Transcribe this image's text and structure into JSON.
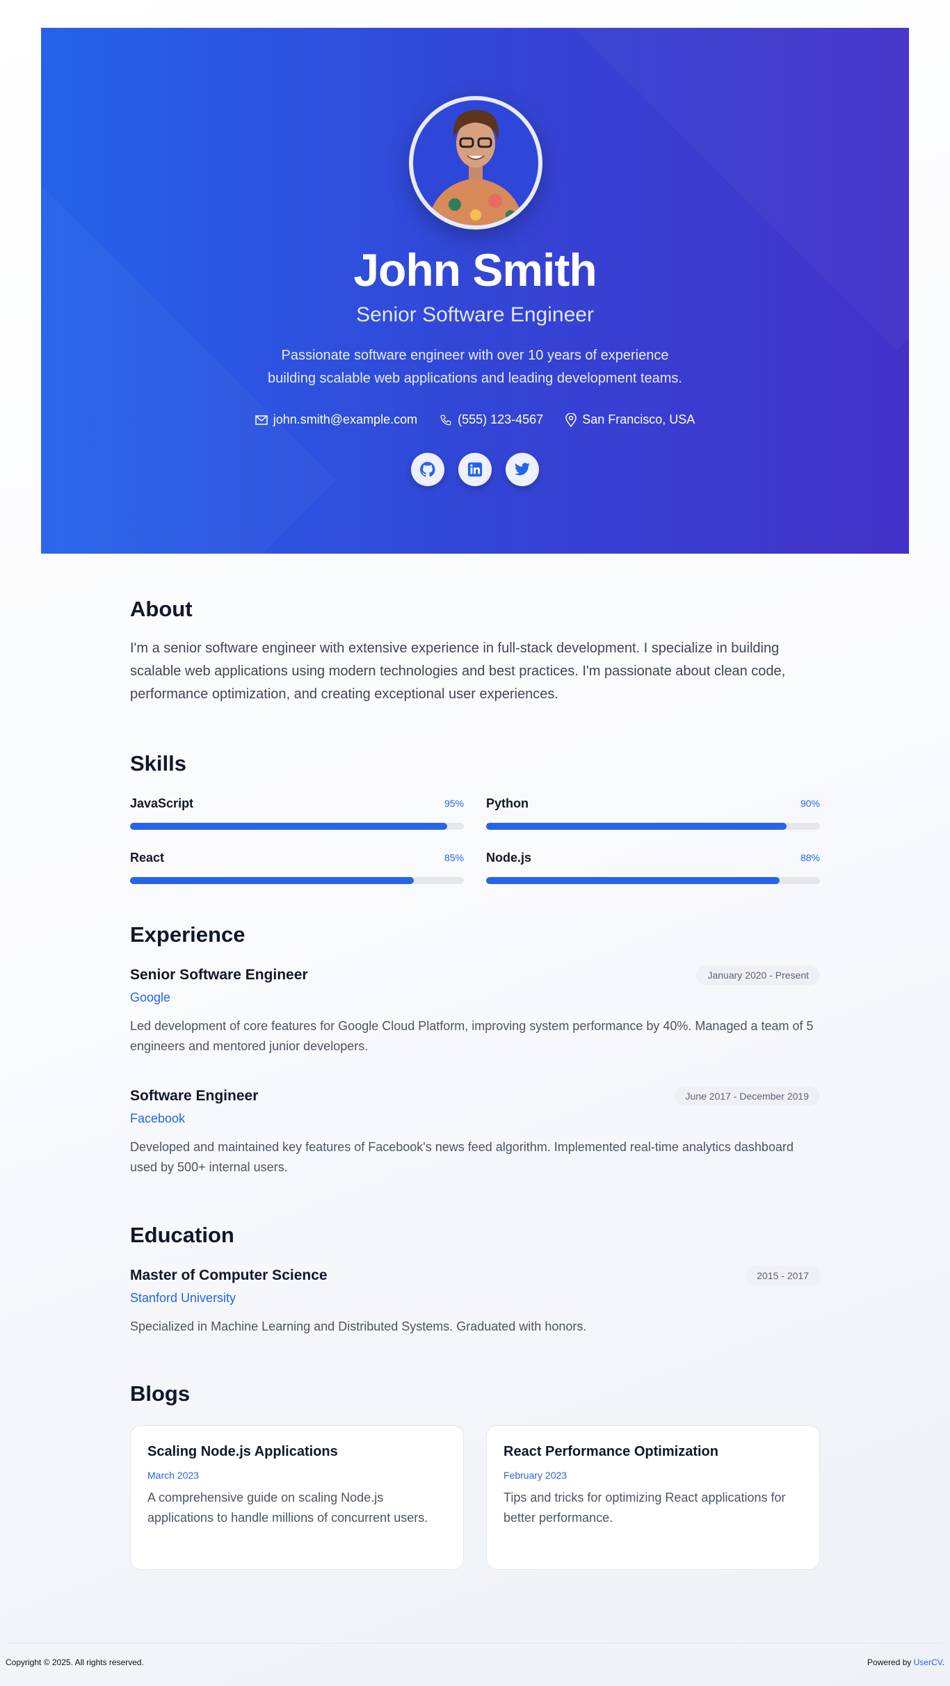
{
  "header": {
    "name": "John Smith",
    "title": "Senior Software Engineer",
    "tagline": "Passionate software engineer with over 10 years of experience building scalable web applications and leading development teams.",
    "email": "john.smith@example.com",
    "phone": "(555) 123-4567",
    "location": "San Francisco, USA",
    "socials": [
      {
        "icon": "github-icon"
      },
      {
        "icon": "linkedin-icon"
      },
      {
        "icon": "twitter-icon"
      }
    ]
  },
  "about": {
    "heading": "About",
    "text": "I'm a senior software engineer with extensive experience in full-stack development. I specialize in building scalable web applications using modern technologies and best practices. I'm passionate about clean code, performance optimization, and creating exceptional user experiences."
  },
  "skills": {
    "heading": "Skills",
    "items": [
      {
        "name": "JavaScript",
        "percent_label": "95%",
        "level": 95
      },
      {
        "name": "Python",
        "percent_label": "90%",
        "level": 90
      },
      {
        "name": "React",
        "percent_label": "85%",
        "level": 85
      },
      {
        "name": "Node.js",
        "percent_label": "88%",
        "level": 88
      }
    ]
  },
  "experience": {
    "heading": "Experience",
    "items": [
      {
        "title": "Senior Software Engineer",
        "company": "Google",
        "dates": "January 2020 - Present",
        "description": "Led development of core features for Google Cloud Platform, improving system performance by 40%. Managed a team of 5 engineers and mentored junior developers."
      },
      {
        "title": "Software Engineer",
        "company": "Facebook",
        "dates": "June 2017 - December 2019",
        "description": "Developed and maintained key features of Facebook's news feed algorithm. Implemented real-time analytics dashboard used by 500+ internal users."
      }
    ]
  },
  "education": {
    "heading": "Education",
    "items": [
      {
        "degree": "Master of Computer Science",
        "school": "Stanford University",
        "dates": "2015 - 2017",
        "description": "Specialized in Machine Learning and Distributed Systems. Graduated with honors."
      }
    ]
  },
  "blogs": {
    "heading": "Blogs",
    "items": [
      {
        "title": "Scaling Node.js Applications",
        "date": "March 2023",
        "description": "A comprehensive guide on scaling Node.js applications to handle millions of concurrent users."
      },
      {
        "title": "React Performance Optimization",
        "date": "February 2023",
        "description": "Tips and tricks for optimizing React applications for better performance."
      }
    ]
  },
  "footer": {
    "copyright": "Copyright © 2025. All rights reserved.",
    "powered_prefix": "Powered by ",
    "powered_link": "UserCV",
    "powered_suffix": "."
  },
  "colors": {
    "accent": "#2563eb",
    "hero_start": "#2563eb",
    "hero_end": "#4331c9"
  }
}
